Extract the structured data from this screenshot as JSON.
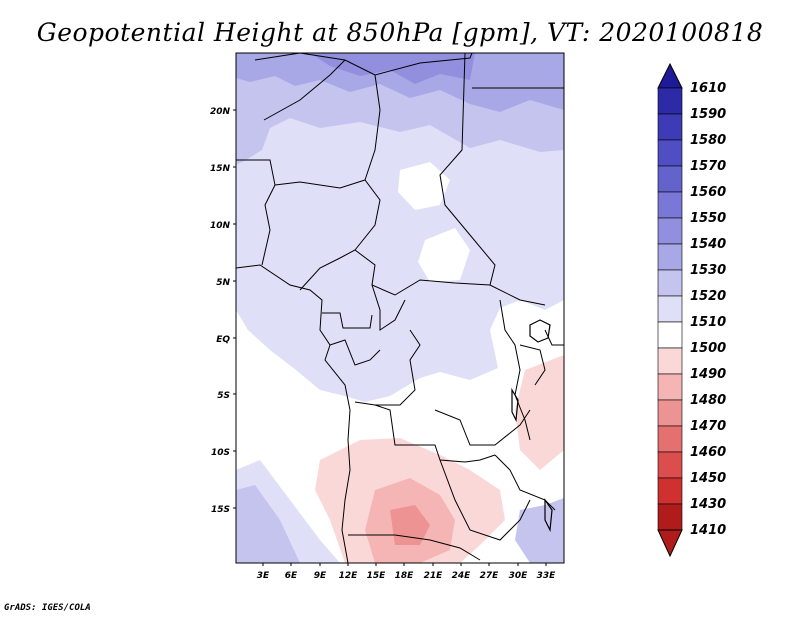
{
  "title": "Geopotential Height at 850hPa [gpm], VT: 2020100818",
  "credit": "GrADS: IGES/COLA",
  "map": {
    "lat_labels": [
      "20N",
      "15N",
      "10N",
      "5N",
      "EQ",
      "5S",
      "10S",
      "15S"
    ],
    "lon_labels": [
      "3E",
      "6E",
      "9E",
      "12E",
      "15E",
      "18E",
      "21E",
      "24E",
      "27E",
      "30E",
      "33E"
    ]
  },
  "colorbar": {
    "levels": [
      "1610",
      "1590",
      "1580",
      "1570",
      "1560",
      "1550",
      "1540",
      "1530",
      "1520",
      "1510",
      "1500",
      "1490",
      "1480",
      "1470",
      "1460",
      "1450",
      "1430",
      "1410"
    ],
    "colors": [
      "#1e1a9a",
      "#2d2aa8",
      "#3d3bb5",
      "#4f4ec2",
      "#6463cc",
      "#7a78d6",
      "#918fde",
      "#a9a8e6",
      "#c4c4ef",
      "#dfdff7",
      "#ffffff",
      "#fbd8d8",
      "#f5b5b5",
      "#ee9393",
      "#e57070",
      "#dc4e4e",
      "#cf3030",
      "#b01c1c"
    ]
  }
}
